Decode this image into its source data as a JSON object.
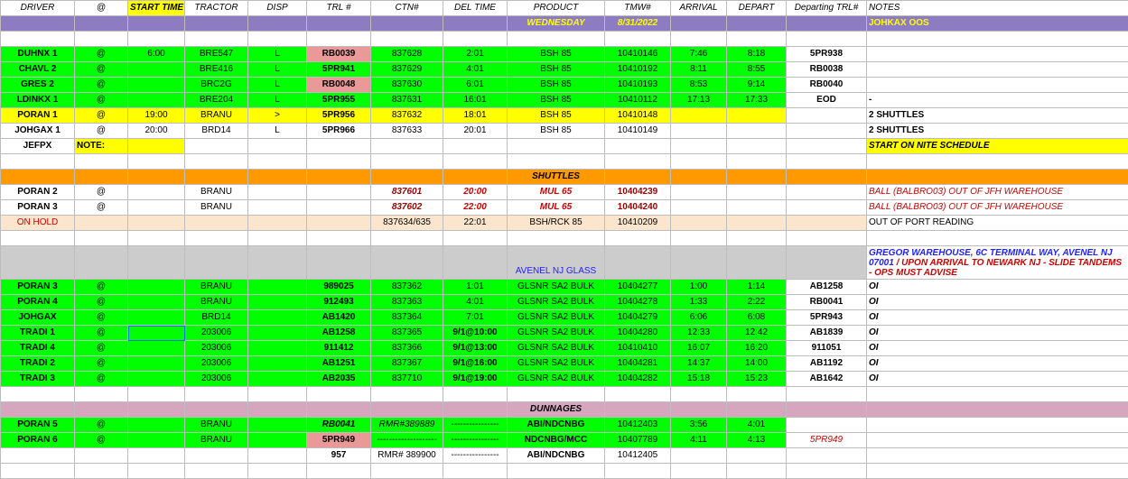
{
  "headers": [
    "DRIVER",
    "@",
    "START TIME",
    "TRACTOR",
    "DISP",
    "TRL #",
    "CTN#",
    "DEL TIME",
    "PRODUCT",
    "TMW#",
    "ARRIVAL",
    "DEPART",
    "Departing TRL#",
    "NOTES"
  ],
  "day_row": {
    "day": "WEDNESDAY",
    "date": "8/31/2022",
    "note": "JOHKAX OOS"
  },
  "main_rows": [
    {
      "driver": "DUHNX 1",
      "at": "@",
      "start": "6:00",
      "tractor": "BRE547",
      "disp": "L",
      "trl": "RB0039",
      "ctn": "837628",
      "del": "2:01",
      "product": "BSH 85",
      "tmw": "10410146",
      "arrival": "7:46",
      "depart": "8:18",
      "dep_trl": "5PR938",
      "notes": ""
    },
    {
      "driver": "CHAVL 2",
      "at": "@",
      "start": "",
      "tractor": "BRE416",
      "disp": "L",
      "trl": "5PR941",
      "ctn": "837629",
      "del": "4:01",
      "product": "BSH 85",
      "tmw": "10410192",
      "arrival": "8:11",
      "depart": "8:55",
      "dep_trl": "RB0038",
      "notes": ""
    },
    {
      "driver": "GRES 2",
      "at": "@",
      "start": "",
      "tractor": "BRC2G",
      "disp": "L",
      "trl": "RB0048",
      "ctn": "837630",
      "del": "6:01",
      "product": "BSH 85",
      "tmw": "10410193",
      "arrival": "8:53",
      "depart": "9:14",
      "dep_trl": "RB0040",
      "notes": ""
    },
    {
      "driver": "LDINKX 1",
      "at": "@",
      "start": "",
      "tractor": "BRE204",
      "disp": "L",
      "trl": "5PR955",
      "ctn": "837631",
      "del": "16:01",
      "product": "BSH 85",
      "tmw": "10410112",
      "arrival": "17:13",
      "depart": "17:33",
      "dep_trl": "EOD",
      "notes": "-"
    },
    {
      "driver": "PORAN 1",
      "at": "@",
      "start": "19:00",
      "tractor": "BRANU",
      "disp": ">",
      "trl": "5PR956",
      "ctn": "837632",
      "del": "18:01",
      "product": "BSH 85",
      "tmw": "10410148",
      "arrival": "",
      "depart": "",
      "dep_trl": "",
      "notes": "2 SHUTTLES"
    },
    {
      "driver": "JOHGAX 1",
      "at": "@",
      "start": "20:00",
      "tractor": "BRD14",
      "disp": "L",
      "trl": "5PR966",
      "ctn": "837633",
      "del": "20:01",
      "product": "BSH 85",
      "tmw": "10410149",
      "arrival": "",
      "depart": "",
      "dep_trl": "",
      "notes": "2 SHUTTLES"
    }
  ],
  "jefpx_row": {
    "driver": "JEFPX",
    "note_label": "NOTE:",
    "notes": "START ON NITE SCHEDULE"
  },
  "shuttles": {
    "title": "SHUTTLES",
    "rows": [
      {
        "driver": "PORAN 2",
        "at": "@",
        "tractor": "BRANU",
        "ctn": "837601",
        "del": "20:00",
        "product": "MUL 65",
        "tmw": "10404239",
        "notes": "BALL (BALBRO03) OUT OF JFH WAREHOUSE"
      },
      {
        "driver": "PORAN 3",
        "at": "@",
        "tractor": "BRANU",
        "ctn": "837602",
        "del": "22:00",
        "product": "MUL 65",
        "tmw": "10404240",
        "notes": "BALL (BALBRO03) OUT OF JFH WAREHOUSE"
      }
    ],
    "hold": {
      "driver": "ON HOLD",
      "ctn": "837634/635",
      "del": "22:01",
      "product": "BSH/RCK 85",
      "tmw": "10410209",
      "notes": "OUT OF PORT READING"
    }
  },
  "avenel": {
    "title": "AVENEL NJ GLASS",
    "note_blue": "GREGOR WAREHOUSE, 6C TERMINAL WAY, AVENEL NJ 07001",
    "note_red": " / UPON ARRIVAL TO NEWARK NJ - SLIDE TANDEMS - OPS MUST ADVISE",
    "rows": [
      {
        "driver": "PORAN 3",
        "at": "@",
        "tractor": "BRANU",
        "trl": "989025",
        "ctn": "837362",
        "del": "1:01",
        "product": "GLSNR SA2 BULK",
        "tmw": "10404277",
        "arrival": "1:00",
        "depart": "1:14",
        "dep_trl": "AB1258",
        "notes": "OI"
      },
      {
        "driver": "PORAN 4",
        "at": "@",
        "tractor": "BRANU",
        "trl": "912493",
        "ctn": "837363",
        "del": "4:01",
        "product": "GLSNR SA2 BULK",
        "tmw": "10404278",
        "arrival": "1:33",
        "depart": "2:22",
        "dep_trl": "RB0041",
        "notes": "OI"
      },
      {
        "driver": "JOHGAX",
        "at": "@",
        "tractor": "BRD14",
        "trl": "AB1420",
        "ctn": "837364",
        "del": "7:01",
        "product": "GLSNR SA2 BULK",
        "tmw": "10404279",
        "arrival": "6:06",
        "depart": "6:08",
        "dep_trl": "5PR943",
        "notes": "OI"
      },
      {
        "driver": "TRADI 1",
        "at": "@",
        "tractor": "203006",
        "trl": "AB1258",
        "ctn": "837365",
        "del": "9/1@10:00",
        "product": "GLSNR SA2 BULK",
        "tmw": "10404280",
        "arrival": "12:33",
        "depart": "12:42",
        "dep_trl": "AB1839",
        "notes": "OI"
      },
      {
        "driver": "TRADI 4",
        "at": "@",
        "tractor": "203006",
        "trl": "911412",
        "ctn": "837366",
        "del": "9/1@13:00",
        "product": "GLSNR SA2 BULK",
        "tmw": "10410410",
        "arrival": "16:07",
        "depart": "16:20",
        "dep_trl": "911051",
        "notes": "OI"
      },
      {
        "driver": "TRADI 2",
        "at": "@",
        "tractor": "203006",
        "trl": "AB1251",
        "ctn": "837367",
        "del": "9/1@16:00",
        "product": "GLSNR SA2 BULK",
        "tmw": "10404281",
        "arrival": "14:37",
        "depart": "14:00",
        "dep_trl": "AB1192",
        "notes": "OI"
      },
      {
        "driver": "TRADI 3",
        "at": "@",
        "tractor": "203006",
        "trl": "AB2035",
        "ctn": "837710",
        "del": "9/1@19:00",
        "product": "GLSNR SA2 BULK",
        "tmw": "10404282",
        "arrival": "15:18",
        "depart": "15:23",
        "dep_trl": "AB1642",
        "notes": "OI"
      }
    ]
  },
  "dunnages": {
    "title": "DUNNAGES",
    "rows": [
      {
        "driver": "PORAN 5",
        "at": "@",
        "tractor": "BRANU",
        "trl": "RB0041",
        "ctn": "RMR#389889",
        "del": "----------------",
        "product": "ABI/NDCNBG",
        "tmw": "10412403",
        "arrival": "3:56",
        "depart": "4:01",
        "dep_trl": ""
      },
      {
        "driver": "PORAN 6",
        "at": "@",
        "tractor": "BRANU",
        "trl": "5PR949",
        "ctn": "--------------------",
        "del": "----------------",
        "product": "NDCNBG/MCC",
        "tmw": "10407789",
        "arrival": "4:11",
        "depart": "4:13",
        "dep_trl": "5PR949"
      }
    ],
    "extra": {
      "trl": "957",
      "ctn": "RMR# 389900",
      "del": "----------------",
      "product": "ABI/NDCNBG",
      "tmw": "10412405"
    }
  }
}
